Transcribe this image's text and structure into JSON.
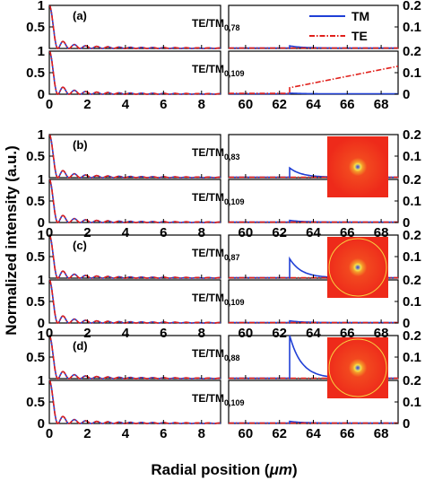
{
  "chart_data": {
    "type": "line",
    "xlabel_prefix": "Radial position (",
    "xlabel_unit": "μm",
    "xlabel_suffix": ")",
    "ylabel": "Normalized intensity (a.u.)",
    "legend": [
      {
        "name": "TM",
        "color": "#1f3fd6",
        "style": "solid"
      },
      {
        "name": "TE",
        "color": "#e0201b",
        "style": "dash-dot"
      }
    ],
    "legend_position": "top-right",
    "left_xlim": [
      0,
      9
    ],
    "right_xlim": [
      59,
      69
    ],
    "left_xticks": [
      "0",
      "2",
      "4",
      "6",
      "8"
    ],
    "right_xticks": [
      "60",
      "62",
      "64",
      "66",
      "68"
    ],
    "left_ylim": [
      0,
      1
    ],
    "right_ylim": [
      0,
      0.2
    ],
    "left_yticks": [
      "0",
      "0.5",
      "1"
    ],
    "right_yticks": [
      "0",
      "0.1",
      "0.2"
    ],
    "groups": [
      {
        "label": "(a)",
        "inset": null,
        "panels": [
          {
            "mode_main": "TE/TM",
            "mode_sub": "0,78",
            "tm_peak_right": 0.012,
            "te_slope_right": false
          },
          {
            "mode_main": "TE/TM",
            "mode_sub": "0,109",
            "tm_peak_right": 0.005,
            "te_slope_right": true,
            "te_right_start": 0.03,
            "te_right_end": 0.13
          }
        ]
      },
      {
        "label": "(b)",
        "inset": "core-only",
        "panels": [
          {
            "mode_main": "TE/TM",
            "mode_sub": "0,83",
            "tm_peak_right": 0.045,
            "te_slope_right": false
          },
          {
            "mode_main": "TE/TM",
            "mode_sub": "0,109",
            "tm_peak_right": 0.01,
            "te_slope_right": false
          }
        ]
      },
      {
        "label": "(c)",
        "inset": "core-and-ring",
        "panels": [
          {
            "mode_main": "TE/TM",
            "mode_sub": "0,87",
            "tm_peak_right": 0.09,
            "te_slope_right": false
          },
          {
            "mode_main": "TE/TM",
            "mode_sub": "0,109",
            "tm_peak_right": 0.01,
            "te_slope_right": false
          }
        ]
      },
      {
        "label": "(d)",
        "inset": "core-and-ring",
        "panels": [
          {
            "mode_main": "TE/TM",
            "mode_sub": "0,88",
            "tm_peak_right": 0.2,
            "te_slope_right": false
          },
          {
            "mode_main": "TE/TM",
            "mode_sub": "0,109",
            "tm_peak_right": 0.01,
            "te_slope_right": false
          }
        ]
      }
    ]
  }
}
